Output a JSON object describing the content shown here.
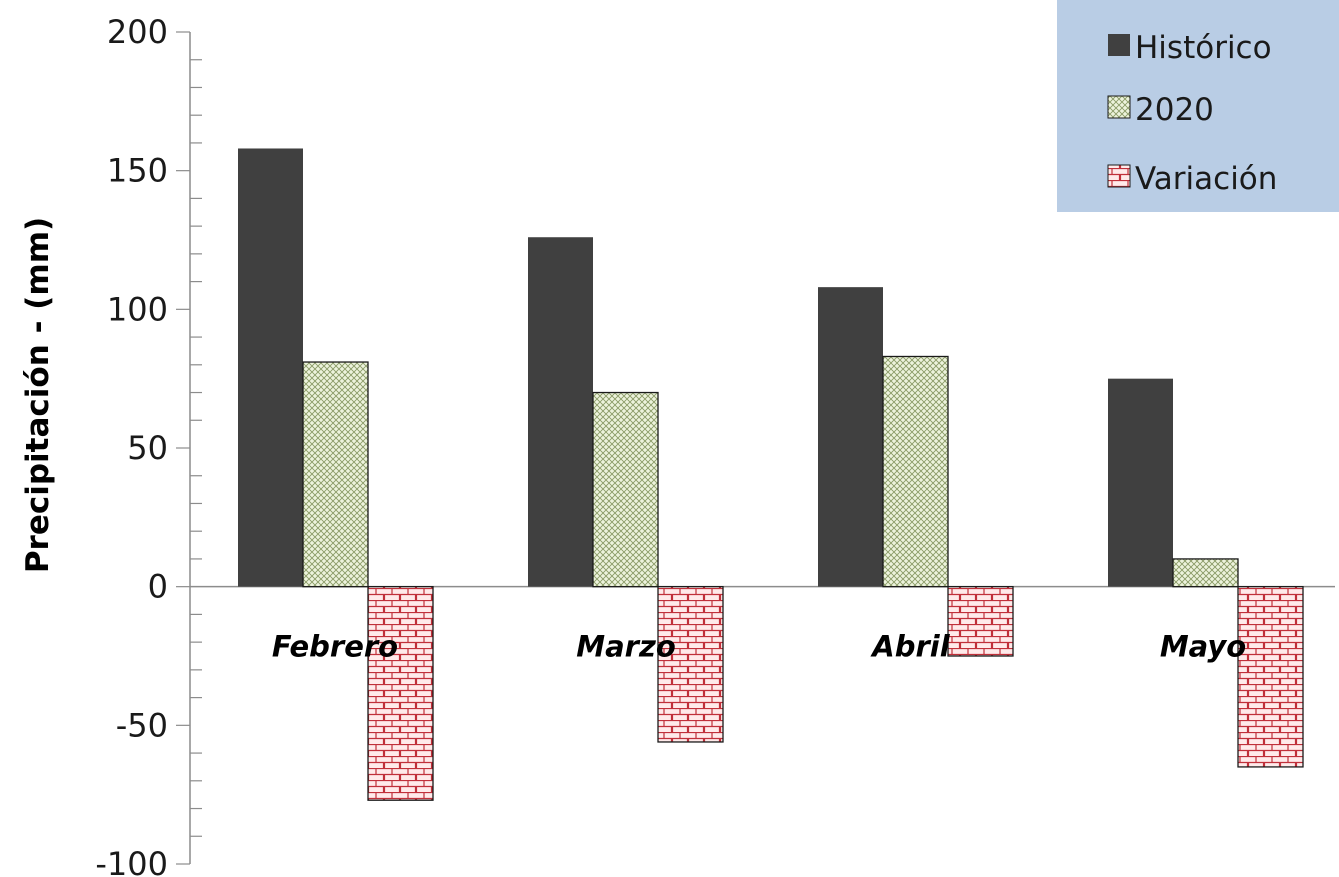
{
  "chart_data": {
    "type": "bar",
    "title": "",
    "xlabel": "",
    "ylabel": "Precipitación - (mm)",
    "ylim": [
      -100,
      200
    ],
    "yticks": [
      200,
      150,
      100,
      50,
      0,
      -50,
      -100
    ],
    "grid": false,
    "legend_position": "top-right",
    "categories": [
      "Febrero",
      "Marzo",
      "Abril",
      "Mayo"
    ],
    "series": [
      {
        "name": "Histórico",
        "values": [
          158,
          126,
          108,
          75
        ],
        "color": "#404040",
        "pattern": "solid"
      },
      {
        "name": "2020",
        "values": [
          81,
          70,
          83,
          10
        ],
        "color": "#e6efcf",
        "pattern": "crosshatch"
      },
      {
        "name": "Variación",
        "values": [
          -77,
          -56,
          -25,
          -65
        ],
        "color": "#ffe6e6",
        "pattern": "brick"
      }
    ],
    "legend_background": "#b9cde5"
  }
}
